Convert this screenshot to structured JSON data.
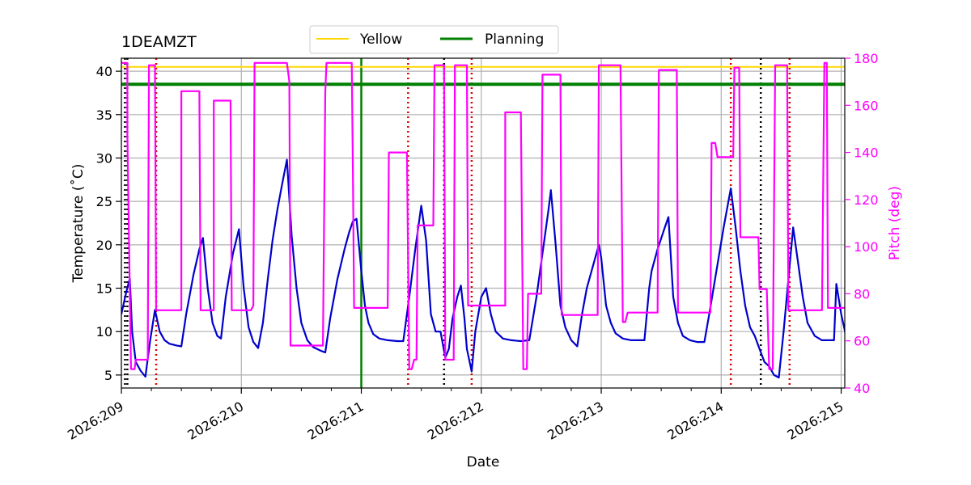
{
  "chart_data": {
    "type": "line",
    "title": "1DEAMZT",
    "xlabel": "Date",
    "ylabel": "Temperature ($^\\circ$C)",
    "ylabel_display": "Temperature (˚C)",
    "y2label": "Pitch (deg)",
    "xlim": [
      209.0,
      215.03
    ],
    "ylim": [
      3.5,
      41.5
    ],
    "y2lim": [
      40,
      180
    ],
    "x_ticks": [
      {
        "value": 209,
        "label": "2026:209"
      },
      {
        "value": 210,
        "label": "2026:210"
      },
      {
        "value": 211,
        "label": "2026:211"
      },
      {
        "value": 212,
        "label": "2026:212"
      },
      {
        "value": 213,
        "label": "2026:213"
      },
      {
        "value": 214,
        "label": "2026:214"
      },
      {
        "value": 215,
        "label": "2026:215"
      }
    ],
    "y_ticks": [
      5,
      10,
      15,
      20,
      25,
      30,
      35,
      40
    ],
    "y2_ticks": [
      40,
      60,
      80,
      100,
      120,
      140,
      160,
      180
    ],
    "grid": true,
    "legend_placement": "top-center",
    "legend": [
      {
        "name": "Yellow",
        "color": "#ffd700"
      },
      {
        "name": "Planning",
        "color": "#008000"
      }
    ],
    "hlines": [
      {
        "name": "Yellow",
        "value": 40.5,
        "color": "#ffd700"
      },
      {
        "name": "Planning",
        "value": 38.5,
        "color": "#008000"
      }
    ],
    "vline_now": {
      "value": 211.0,
      "color": "#008000"
    },
    "vlines_black_dotted": [
      209.05,
      209.03,
      211.69,
      214.33
    ],
    "vlines_red_dotted": [
      209.29,
      211.39,
      211.92,
      214.08,
      214.57
    ],
    "series": [
      {
        "name": "Temperature",
        "axis": "left",
        "color": "#0000cd",
        "points": [
          [
            209.0,
            12.0
          ],
          [
            209.04,
            14.5
          ],
          [
            209.07,
            16.1
          ],
          [
            209.09,
            10.0
          ],
          [
            209.12,
            6.5
          ],
          [
            209.16,
            5.5
          ],
          [
            209.2,
            4.8
          ],
          [
            209.24,
            9.0
          ],
          [
            209.28,
            12.5
          ],
          [
            209.32,
            10.0
          ],
          [
            209.36,
            9.0
          ],
          [
            209.4,
            8.6
          ],
          [
            209.46,
            8.4
          ],
          [
            209.5,
            8.3
          ],
          [
            209.54,
            12.0
          ],
          [
            209.6,
            16.5
          ],
          [
            209.65,
            19.5
          ],
          [
            209.68,
            20.8
          ],
          [
            209.72,
            15.0
          ],
          [
            209.76,
            11.0
          ],
          [
            209.8,
            9.5
          ],
          [
            209.83,
            9.2
          ],
          [
            209.87,
            14.0
          ],
          [
            209.93,
            19.0
          ],
          [
            209.98,
            21.8
          ],
          [
            210.02,
            15.0
          ],
          [
            210.06,
            10.5
          ],
          [
            210.1,
            8.8
          ],
          [
            210.14,
            8.1
          ],
          [
            210.18,
            11.0
          ],
          [
            210.22,
            16.0
          ],
          [
            210.26,
            20.5
          ],
          [
            210.3,
            24.0
          ],
          [
            210.34,
            27.0
          ],
          [
            210.38,
            29.8
          ],
          [
            210.42,
            21.0
          ],
          [
            210.46,
            15.0
          ],
          [
            210.5,
            11.0
          ],
          [
            210.55,
            9.0
          ],
          [
            210.6,
            8.2
          ],
          [
            210.66,
            7.8
          ],
          [
            210.7,
            7.6
          ],
          [
            210.74,
            11.5
          ],
          [
            210.8,
            16.0
          ],
          [
            210.86,
            19.5
          ],
          [
            210.9,
            21.5
          ],
          [
            210.93,
            22.7
          ],
          [
            210.96,
            23.0
          ],
          [
            211.0,
            17.0
          ],
          [
            211.03,
            13.0
          ],
          [
            211.06,
            11.0
          ],
          [
            211.1,
            9.7
          ],
          [
            211.15,
            9.2
          ],
          [
            211.22,
            9.0
          ],
          [
            211.3,
            8.9
          ],
          [
            211.35,
            8.9
          ],
          [
            211.4,
            14.0
          ],
          [
            211.45,
            19.5
          ],
          [
            211.5,
            24.5
          ],
          [
            211.54,
            20.5
          ],
          [
            211.58,
            12.0
          ],
          [
            211.62,
            10.0
          ],
          [
            211.66,
            10.0
          ],
          [
            211.7,
            7.0
          ],
          [
            211.73,
            8.0
          ],
          [
            211.76,
            11.5
          ],
          [
            211.8,
            14.0
          ],
          [
            211.83,
            15.3
          ],
          [
            211.86,
            11.5
          ],
          [
            211.88,
            8.0
          ],
          [
            211.92,
            5.4
          ],
          [
            211.95,
            10.0
          ],
          [
            212.0,
            14.0
          ],
          [
            212.04,
            15.0
          ],
          [
            212.08,
            12.0
          ],
          [
            212.12,
            10.0
          ],
          [
            212.18,
            9.2
          ],
          [
            212.25,
            9.0
          ],
          [
            212.33,
            8.9
          ],
          [
            212.4,
            9.0
          ],
          [
            212.46,
            14.0
          ],
          [
            212.52,
            20.0
          ],
          [
            212.56,
            24.0
          ],
          [
            212.58,
            26.3
          ],
          [
            212.62,
            20.0
          ],
          [
            212.66,
            13.0
          ],
          [
            212.7,
            10.5
          ],
          [
            212.75,
            9.0
          ],
          [
            212.8,
            8.3
          ],
          [
            212.84,
            12.0
          ],
          [
            212.88,
            15.0
          ],
          [
            212.94,
            18.0
          ],
          [
            212.98,
            20.0
          ],
          [
            213.0,
            18.5
          ],
          [
            213.04,
            13.0
          ],
          [
            213.08,
            11.0
          ],
          [
            213.12,
            9.8
          ],
          [
            213.18,
            9.2
          ],
          [
            213.25,
            9.0
          ],
          [
            213.32,
            9.0
          ],
          [
            213.36,
            9.0
          ],
          [
            213.4,
            15.0
          ],
          [
            213.42,
            17.0
          ],
          [
            213.47,
            19.5
          ],
          [
            213.53,
            22.0
          ],
          [
            213.56,
            23.2
          ],
          [
            213.6,
            14.0
          ],
          [
            213.64,
            11.0
          ],
          [
            213.68,
            9.5
          ],
          [
            213.74,
            9.0
          ],
          [
            213.8,
            8.8
          ],
          [
            213.86,
            8.8
          ],
          [
            213.9,
            12.0
          ],
          [
            213.96,
            17.0
          ],
          [
            214.02,
            22.0
          ],
          [
            214.06,
            25.0
          ],
          [
            214.08,
            26.5
          ],
          [
            214.12,
            22.0
          ],
          [
            214.16,
            17.0
          ],
          [
            214.2,
            13.0
          ],
          [
            214.24,
            10.5
          ],
          [
            214.28,
            9.5
          ],
          [
            214.32,
            8.0
          ],
          [
            214.36,
            6.5
          ],
          [
            214.4,
            6.0
          ],
          [
            214.44,
            5.0
          ],
          [
            214.48,
            4.7
          ],
          [
            214.52,
            10.0
          ],
          [
            214.56,
            16.0
          ],
          [
            214.6,
            22.0
          ],
          [
            214.64,
            18.0
          ],
          [
            214.68,
            14.0
          ],
          [
            214.72,
            11.0
          ],
          [
            214.78,
            9.5
          ],
          [
            214.84,
            9.0
          ],
          [
            214.9,
            9.0
          ],
          [
            214.94,
            9.0
          ],
          [
            214.96,
            15.5
          ],
          [
            215.0,
            12.0
          ],
          [
            215.04,
            9.5
          ],
          [
            215.08,
            9.2
          ]
        ]
      },
      {
        "name": "Pitch",
        "axis": "right",
        "color": "#ff00ff",
        "points": [
          [
            209.0,
            178.0
          ],
          [
            209.05,
            178.0
          ],
          [
            209.05,
            148.0
          ],
          [
            209.08,
            48.0
          ],
          [
            209.11,
            48.0
          ],
          [
            209.12,
            52.0
          ],
          [
            209.22,
            52.0
          ],
          [
            209.23,
            177.0
          ],
          [
            209.28,
            177.0
          ],
          [
            209.29,
            73.0
          ],
          [
            209.5,
            73.0
          ],
          [
            209.5,
            166.0
          ],
          [
            209.65,
            166.0
          ],
          [
            209.66,
            73.0
          ],
          [
            209.77,
            73.0
          ],
          [
            209.77,
            162.0
          ],
          [
            209.91,
            162.0
          ],
          [
            209.92,
            73.0
          ],
          [
            210.08,
            73.0
          ],
          [
            210.1,
            75.0
          ],
          [
            210.11,
            178.0
          ],
          [
            210.38,
            178.0
          ],
          [
            210.4,
            170.0
          ],
          [
            210.41,
            58.0
          ],
          [
            210.68,
            58.0
          ],
          [
            210.7,
            166.0
          ],
          [
            210.71,
            178.0
          ],
          [
            210.92,
            178.0
          ],
          [
            210.93,
            133.0
          ],
          [
            210.94,
            74.0
          ],
          [
            211.22,
            74.0
          ],
          [
            211.23,
            140.0
          ],
          [
            211.38,
            140.0
          ],
          [
            211.4,
            48.0
          ],
          [
            211.42,
            48.0
          ],
          [
            211.44,
            52.0
          ],
          [
            211.46,
            52.0
          ],
          [
            211.47,
            109.0
          ],
          [
            211.6,
            109.0
          ],
          [
            211.61,
            177.0
          ],
          [
            211.69,
            177.0
          ],
          [
            211.7,
            52.0
          ],
          [
            211.77,
            52.0
          ],
          [
            211.78,
            177.0
          ],
          [
            211.88,
            177.0
          ],
          [
            211.89,
            75.0
          ],
          [
            212.2,
            75.0
          ],
          [
            212.2,
            157.0
          ],
          [
            212.33,
            157.0
          ],
          [
            212.35,
            48.0
          ],
          [
            212.38,
            48.0
          ],
          [
            212.39,
            80.0
          ],
          [
            212.5,
            80.0
          ],
          [
            212.51,
            173.0
          ],
          [
            212.66,
            173.0
          ],
          [
            212.67,
            71.0
          ],
          [
            212.97,
            71.0
          ],
          [
            212.98,
            177.0
          ],
          [
            213.16,
            177.0
          ],
          [
            213.18,
            68.0
          ],
          [
            213.2,
            68.0
          ],
          [
            213.22,
            72.0
          ],
          [
            213.47,
            72.0
          ],
          [
            213.48,
            175.0
          ],
          [
            213.63,
            175.0
          ],
          [
            213.64,
            72.0
          ],
          [
            213.91,
            72.0
          ],
          [
            213.92,
            144.0
          ],
          [
            213.95,
            144.0
          ],
          [
            213.97,
            138.0
          ],
          [
            214.1,
            138.0
          ],
          [
            214.11,
            176.0
          ],
          [
            214.15,
            176.0
          ],
          [
            214.16,
            104.0
          ],
          [
            214.31,
            104.0
          ],
          [
            214.32,
            82.0
          ],
          [
            214.38,
            82.0
          ],
          [
            214.4,
            48.0
          ],
          [
            214.43,
            48.0
          ],
          [
            214.45,
            177.0
          ],
          [
            214.55,
            177.0
          ],
          [
            214.56,
            73.0
          ],
          [
            214.84,
            73.0
          ],
          [
            214.86,
            178.0
          ],
          [
            214.88,
            178.0
          ],
          [
            214.89,
            74.0
          ],
          [
            215.03,
            74.0
          ]
        ]
      }
    ]
  }
}
